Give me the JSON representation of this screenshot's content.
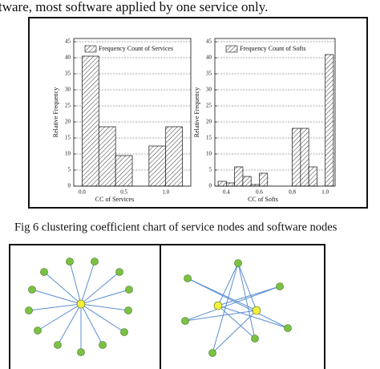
{
  "header": {
    "text": "tware, most software applied by one service only."
  },
  "caption": "Fig 6 clustering coefficient chart of service nodes and software nodes",
  "chart_data": [
    {
      "type": "histogram",
      "legend": "Frequency Count of Services",
      "xlabel": "CC of Services",
      "ylabel": "Relative Frequency",
      "bins": [
        0,
        0.2,
        0.4,
        0.6,
        0.8,
        1.0,
        1.2
      ],
      "counts": [
        40.5,
        18.5,
        9.5,
        0,
        12.5,
        18.5
      ],
      "xlim": [
        -0.1,
        1.3
      ],
      "xticks": [
        {
          "value": 0,
          "label": "0.0"
        },
        {
          "value": 0.5,
          "label": "0.5"
        },
        {
          "value": 1,
          "label": "1.0"
        }
      ],
      "ylim": [
        0,
        46
      ],
      "yticks": [
        0,
        5,
        10,
        15,
        20,
        25,
        30,
        35,
        40,
        45
      ],
      "grid": true
    },
    {
      "type": "histogram",
      "legend": "Frequency Count of Softs",
      "xlabel": "CC of Softs",
      "ylabel": "Relative Frequency",
      "bins": [
        0.35,
        0.4,
        0.45,
        0.5,
        0.55,
        0.6,
        0.65,
        0.7,
        0.75,
        0.8,
        0.85,
        0.9,
        0.95,
        1.0,
        1.05
      ],
      "counts": [
        1.5,
        1,
        6,
        3,
        0.5,
        4,
        0,
        0,
        0,
        18,
        18,
        6,
        0,
        41
      ],
      "xlim": [
        0.33,
        1.06
      ],
      "xticks": [
        0.4,
        0.6,
        0.8,
        {
          "value": 1,
          "label": "1.0"
        }
      ],
      "ylim": [
        0,
        46
      ],
      "yticks": [
        0,
        5,
        10,
        15,
        20,
        25,
        30,
        35,
        40,
        45
      ],
      "grid": true
    }
  ]
}
